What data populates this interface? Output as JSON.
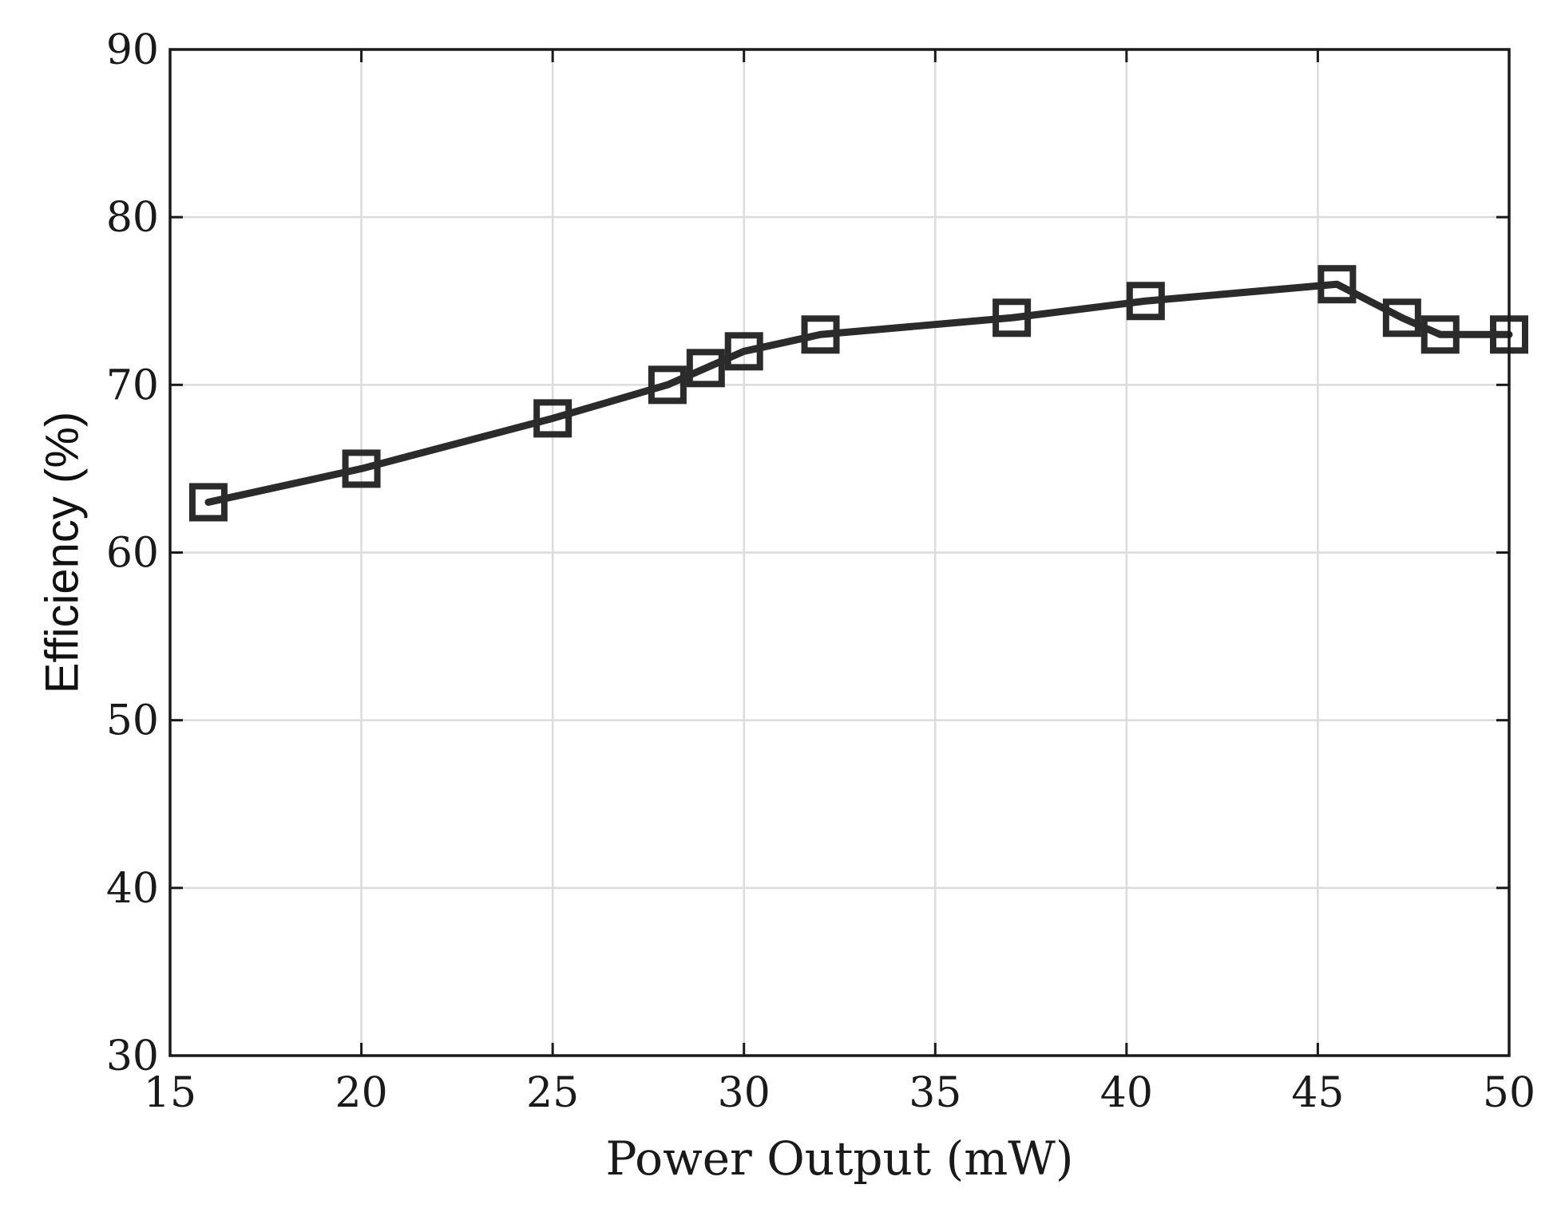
{
  "chart_data": {
    "type": "line",
    "title": "",
    "xlabel": "Power Output (mW)",
    "ylabel": "Efficiency (%)",
    "xlim": [
      15,
      50
    ],
    "ylim": [
      30,
      90
    ],
    "xticks": [
      15,
      20,
      25,
      30,
      35,
      40,
      45,
      50
    ],
    "yticks": [
      30,
      40,
      50,
      60,
      70,
      80,
      90
    ],
    "grid": true,
    "series": [
      {
        "marker": "square",
        "color": "#2b2b2b",
        "x": [
          16,
          20,
          25,
          28,
          29,
          30,
          32,
          37,
          40.5,
          45.5,
          47.2,
          48.2,
          50
        ],
        "y": [
          63,
          65,
          68,
          70,
          71,
          72,
          73,
          74,
          75,
          76,
          74,
          73,
          73
        ]
      }
    ]
  }
}
